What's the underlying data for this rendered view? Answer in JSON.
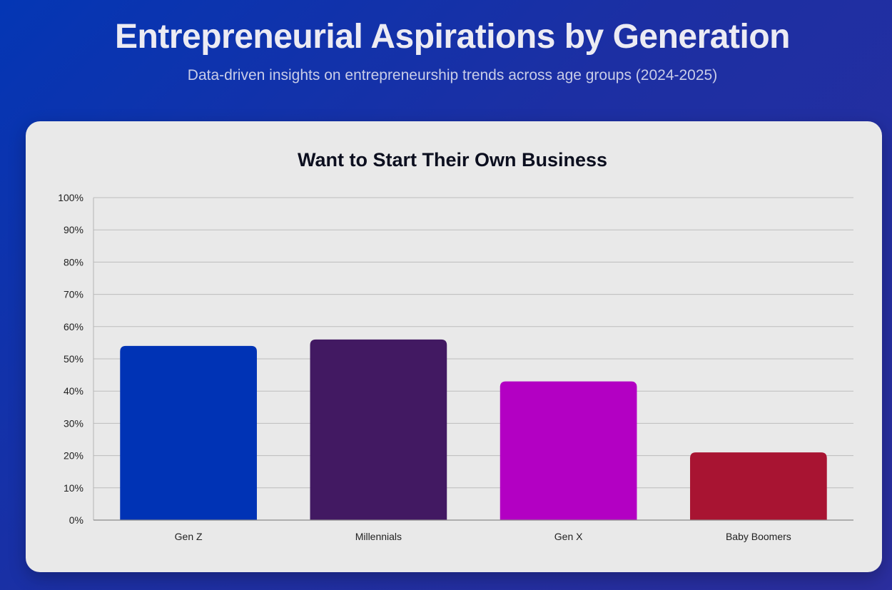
{
  "header": {
    "title": "Entrepreneurial Aspirations by Generation",
    "subtitle": "Data-driven insights on entrepreneurship trends across age groups (2024-2025)"
  },
  "chart_data": {
    "type": "bar",
    "title": "Want to Start Their Own Business",
    "xlabel": "",
    "ylabel": "",
    "ylim": [
      0,
      100
    ],
    "y_ticks": [
      0,
      10,
      20,
      30,
      40,
      50,
      60,
      70,
      80,
      90,
      100
    ],
    "y_tick_labels": [
      "0%",
      "10%",
      "20%",
      "30%",
      "40%",
      "50%",
      "60%",
      "70%",
      "80%",
      "90%",
      "100%"
    ],
    "grid": true,
    "legend": "none",
    "categories": [
      "Gen Z",
      "Millennials",
      "Gen X",
      "Baby Boomers"
    ],
    "values": [
      54,
      56,
      43,
      21
    ],
    "colors": [
      "#0033b5",
      "#421962",
      "#b300c3",
      "#a81432"
    ]
  }
}
